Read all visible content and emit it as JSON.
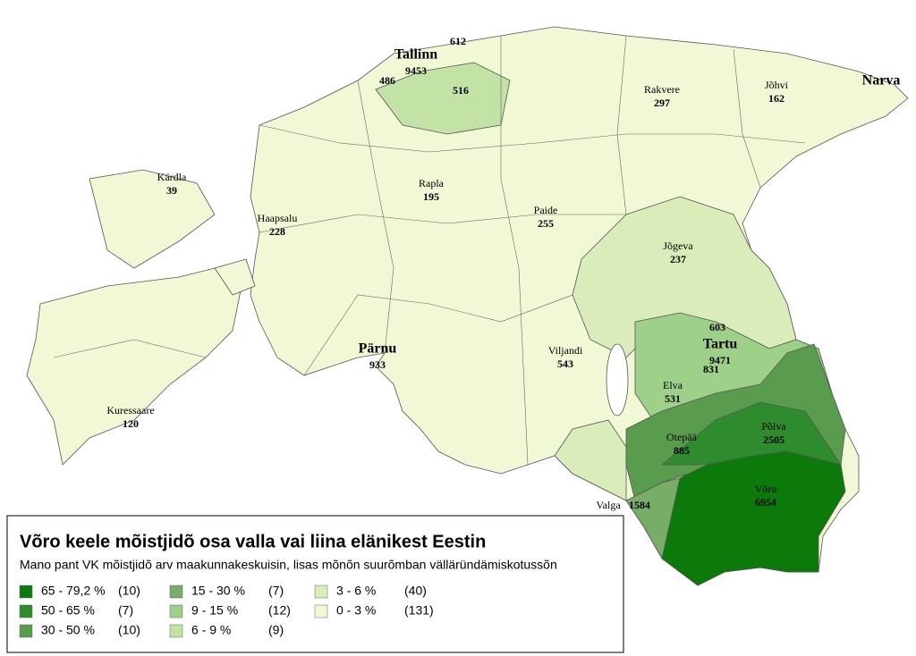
{
  "map": {
    "cities": [
      {
        "name": "Tallinn",
        "value": 9453
      },
      {
        "value": 612
      },
      {
        "value": 486
      },
      {
        "value": 516
      },
      {
        "name": "Rakvere",
        "value": 297
      },
      {
        "name": "Jõhvi",
        "value": 162
      },
      {
        "name": "Narva"
      },
      {
        "name": "Kärdla",
        "value": 39
      },
      {
        "name": "Rapla",
        "value": 195
      },
      {
        "name": "Haapsalu",
        "value": 228
      },
      {
        "name": "Paide",
        "value": 255
      },
      {
        "name": "Jõgeva",
        "value": 237
      },
      {
        "value": 603
      },
      {
        "name": "Tartu",
        "value": 9471
      },
      {
        "value": 831
      },
      {
        "name": "Pärnu",
        "value": 933
      },
      {
        "name": "Viljandi",
        "value": 543
      },
      {
        "name": "Elva",
        "value": 531
      },
      {
        "name": "Põlva",
        "value": 2505
      },
      {
        "name": "Otepää",
        "value": 885
      },
      {
        "name": "Võru",
        "value": 6954
      },
      {
        "name": "Valga",
        "value": 1584
      },
      {
        "name": "Kuressaare",
        "value": 120
      }
    ]
  },
  "legend": {
    "title": "Võro keele mõistjidõ osa valla vai liina elänikest Eestin",
    "subtitle": "Mano pant VK mõistjidõ arv maakunnakeskuisin, lisas mõnõn suurõmban välläründämiskotussõn",
    "items": [
      {
        "range": "65 - 79,2 %",
        "count": "(10)",
        "color": "#0b7a0b"
      },
      {
        "range": "50 - 65 %",
        "count": "(7)",
        "color": "#2e8b2e"
      },
      {
        "range": "30 - 50 %",
        "count": "(10)",
        "color": "#5a9c4e"
      },
      {
        "range": "15 - 30 %",
        "count": "(7)",
        "color": "#78ad68"
      },
      {
        "range": "9 - 15 %",
        "count": "(12)",
        "color": "#9fd08a"
      },
      {
        "range": "6 - 9 %",
        "count": "(9)",
        "color": "#c3e2a6"
      },
      {
        "range": "3 - 6 %",
        "count": "(40)",
        "color": "#d9ecba"
      },
      {
        "range": "0 - 3 %",
        "count": "(131)",
        "color": "#f1f8d6"
      }
    ]
  }
}
